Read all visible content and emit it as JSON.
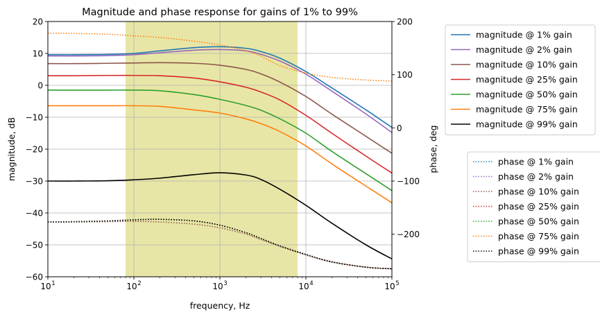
{
  "chart_data": {
    "type": "line",
    "title": "Magnitude and phase response for gains of 1% to 99%",
    "xlabel": "frequency, Hz",
    "ylabel": "magnitude, dB",
    "y2label": "phase, deg",
    "x_scale": "log",
    "xlim": [
      10,
      100000
    ],
    "ylim": [
      -60,
      20
    ],
    "y2lim": [
      -280,
      200
    ],
    "x_ticks": [
      10,
      100,
      1000,
      10000,
      100000
    ],
    "x_tick_labels": [
      {
        "base": "10",
        "exp": "1"
      },
      {
        "base": "10",
        "exp": "2"
      },
      {
        "base": "10",
        "exp": "3"
      },
      {
        "base": "10",
        "exp": "4"
      },
      {
        "base": "10",
        "exp": "5"
      }
    ],
    "y_ticks": [
      20,
      10,
      0,
      -10,
      -20,
      -30,
      -40,
      -50,
      -60
    ],
    "y_tick_labels": [
      "20",
      "10",
      "0",
      "−10",
      "−20",
      "−30",
      "−40",
      "−50",
      "−60"
    ],
    "y2_ticks": [
      200,
      100,
      0,
      -100,
      -200
    ],
    "y2_tick_labels": [
      "200",
      "100",
      "0",
      "−100",
      "−200"
    ],
    "grid": true,
    "shaded_band": {
      "x_from": 80,
      "x_to": 8000,
      "color": "#e8e6a6"
    },
    "magnitude_legend_placement": "outside-right-top",
    "phase_legend_placement": "outside-right-bottom",
    "x_samples": [
      10,
      20,
      50,
      100,
      200,
      500,
      1000,
      2000,
      3000,
      5000,
      10000,
      20000,
      50000,
      100000
    ],
    "magnitude_series": [
      {
        "name": "magnitude @ 1% gain",
        "color": "#1f77b4",
        "values": [
          9.6,
          9.6,
          9.7,
          10.0,
          10.8,
          11.8,
          12.1,
          11.6,
          10.6,
          8.5,
          4.3,
          -0.8,
          -7.7,
          -13.2
        ]
      },
      {
        "name": "magnitude @ 2% gain",
        "color": "#9467bd",
        "values": [
          9.2,
          9.2,
          9.3,
          9.6,
          10.2,
          11.0,
          11.2,
          10.8,
          9.7,
          7.6,
          3.5,
          -1.8,
          -9.0,
          -14.8
        ]
      },
      {
        "name": "magnitude @ 10% gain",
        "color": "#8c564b",
        "values": [
          6.8,
          6.8,
          6.9,
          7.0,
          7.1,
          6.9,
          6.3,
          5.0,
          3.6,
          1.0,
          -3.5,
          -9.0,
          -16.0,
          -21.3
        ]
      },
      {
        "name": "magnitude @ 25% gain",
        "color": "#d62728",
        "values": [
          3.0,
          3.0,
          3.1,
          3.1,
          3.0,
          2.3,
          1.1,
          -0.6,
          -2.1,
          -4.6,
          -9.4,
          -15.0,
          -22.2,
          -27.5
        ]
      },
      {
        "name": "magnitude @ 50% gain",
        "color": "#2ca02c",
        "values": [
          -1.5,
          -1.5,
          -1.5,
          -1.5,
          -1.7,
          -2.9,
          -4.4,
          -6.3,
          -7.8,
          -10.5,
          -15.0,
          -20.7,
          -27.7,
          -33.0
        ]
      },
      {
        "name": "magnitude @ 75% gain",
        "color": "#ff7f0e",
        "values": [
          -6.4,
          -6.4,
          -6.4,
          -6.4,
          -6.6,
          -7.7,
          -8.7,
          -10.5,
          -12.0,
          -14.5,
          -19.0,
          -24.6,
          -31.6,
          -36.8
        ]
      },
      {
        "name": "magnitude @ 99% gain",
        "color": "#000000",
        "values": [
          -30.0,
          -30.0,
          -29.9,
          -29.6,
          -29.1,
          -28.0,
          -27.4,
          -28.1,
          -29.5,
          -32.6,
          -37.6,
          -43.2,
          -50.0,
          -54.4
        ]
      }
    ],
    "phase_x_samples": [
      10,
      20,
      50,
      100,
      200,
      500,
      1000,
      2000,
      3000,
      5000,
      10000,
      20000,
      50000,
      100000
    ],
    "phase_series": [
      {
        "name": "phase @ 1% gain",
        "color": "#1f77b4",
        "values": [
          -177,
          -176.5,
          -175,
          -173,
          -172,
          -175,
          -183,
          -197,
          -208,
          -222,
          -238,
          -252,
          -262,
          -265
        ]
      },
      {
        "name": "phase @ 2% gain",
        "color": "#9467bd",
        "values": [
          -177,
          -176.5,
          -175,
          -173,
          -172,
          -175,
          -183,
          -197,
          -208,
          -222,
          -238,
          -252,
          -262,
          -265
        ]
      },
      {
        "name": "phase @ 10% gain",
        "color": "#8c564b",
        "values": [
          -177,
          -177,
          -176.5,
          -176,
          -177,
          -181,
          -188,
          -200,
          -210,
          -223,
          -239,
          -252,
          -262,
          -265
        ]
      },
      {
        "name": "phase @ 25% gain",
        "color": "#d62728",
        "values": [
          -177,
          -176.5,
          -175,
          -173,
          -172,
          -175,
          -183,
          -197,
          -208,
          -222,
          -238,
          -252,
          -262,
          -265
        ]
      },
      {
        "name": "phase @ 50% gain",
        "color": "#2ca02c",
        "values": [
          -177,
          -176.5,
          -175,
          -173,
          -172,
          -175,
          -183,
          -197,
          -208,
          -222,
          -238,
          -252,
          -262,
          -265
        ]
      },
      {
        "name": "phase @ 75% gain",
        "color": "#ff7f0e",
        "values": [
          178,
          177.5,
          176,
          173,
          170,
          163,
          156,
          145,
          135,
          117,
          103,
          95,
          90,
          88
        ]
      },
      {
        "name": "phase @ 99% gain",
        "color": "#000000",
        "values": [
          -177,
          -176.5,
          -175,
          -173,
          -172,
          -175,
          -183,
          -197,
          -208,
          -222,
          -238,
          -252,
          -262,
          -265
        ]
      }
    ]
  }
}
